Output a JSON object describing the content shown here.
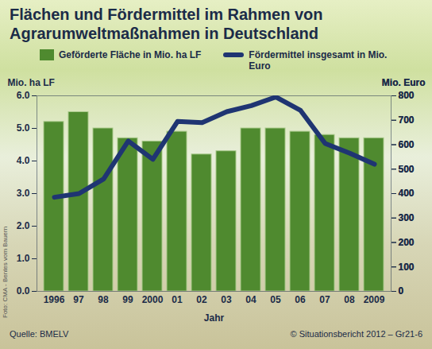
{
  "chart_data": {
    "type": "bar",
    "title": "Flächen und Fördermittel im Rahmen von Agrarumweltmaßnahmen in Deutschland",
    "categories": [
      "1996",
      "97",
      "98",
      "99",
      "2000",
      "01",
      "02",
      "03",
      "04",
      "05",
      "06",
      "07",
      "08",
      "2009"
    ],
    "x_label": "Jahr",
    "y_label": "Mio. ha LF",
    "y2_label": "Mio. Euro",
    "series": [
      {
        "name": "Geförderte Fläche in Mio. ha LF",
        "type": "bar",
        "color": "#4f8a2f",
        "values": [
          5.2,
          5.5,
          5.0,
          4.7,
          4.6,
          4.9,
          4.2,
          4.3,
          5.0,
          5.0,
          4.9,
          4.8,
          4.7,
          4.7
        ]
      },
      {
        "name": "Fördermittel insgesamt in Mio. Euro",
        "type": "line",
        "axis": "y2",
        "color": "#1f3572",
        "values": [
          385,
          400,
          460,
          615,
          540,
          695,
          690,
          735,
          760,
          795,
          740,
          605,
          565,
          520
        ]
      }
    ],
    "ylim": [
      0,
      6
    ],
    "yticks": [
      0,
      1,
      2,
      3,
      4,
      5,
      6
    ],
    "y2lim": [
      0,
      800
    ],
    "y2ticks": [
      0,
      100,
      200,
      300,
      400,
      500,
      600,
      700,
      800
    ],
    "legend": "top",
    "grid": false,
    "source": "Quelle: BMELV",
    "copyright": "© Situationsbericht 2012 – Gr21-6",
    "photo_credit": "Foto: CMA - Bentes vom Bauern"
  }
}
